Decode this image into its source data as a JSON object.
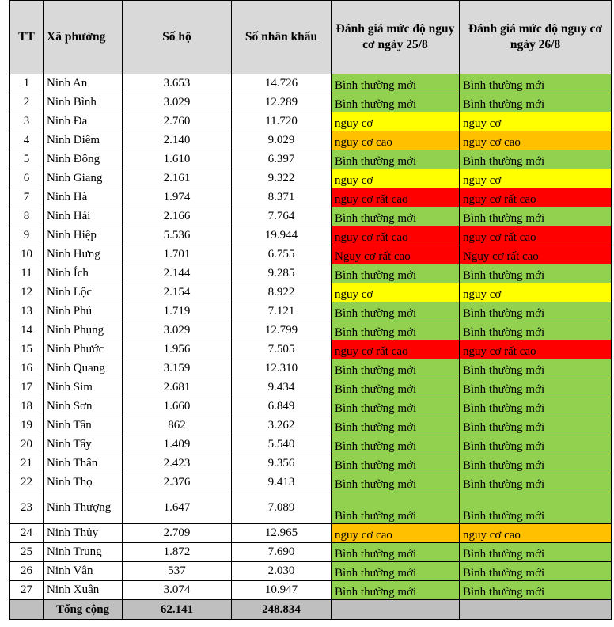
{
  "headers": {
    "tt": "TT",
    "ward": "Xã phường",
    "households": "Số hộ",
    "population": "Số nhân khẩu",
    "risk_25": "Đánh giá mức độ nguy cơ ngày 25/8",
    "risk_26": "Đánh giá mức độ nguy cơ ngày 26/8"
  },
  "level_colors": {
    "green": "#92d050",
    "yellow": "#ffff00",
    "orange": "#ffc000",
    "red": "#ff0000"
  },
  "rows": [
    {
      "tt": "1",
      "name": "Ninh An",
      "households": "3.653",
      "population": "14.726",
      "r25": "Bình thường mới",
      "r26": "Bình thường mới",
      "c25": "green",
      "c26": "green"
    },
    {
      "tt": "2",
      "name": "Ninh Bình",
      "households": "3.029",
      "population": "12.289",
      "r25": "Bình thường mới",
      "r26": "Bình thường mới",
      "c25": "green",
      "c26": "green"
    },
    {
      "tt": "3",
      "name": "Ninh Đa",
      "households": "2.760",
      "population": "11.720",
      "r25": "nguy cơ",
      "r26": "nguy cơ",
      "c25": "yellow",
      "c26": "yellow"
    },
    {
      "tt": "4",
      "name": "Ninh Diêm",
      "households": "2.140",
      "population": "9.029",
      "r25": "nguy cơ cao",
      "r26": "nguy cơ cao",
      "c25": "orange",
      "c26": "orange"
    },
    {
      "tt": "5",
      "name": "Ninh Đông",
      "households": "1.610",
      "population": "6.397",
      "r25": "Bình thường mới",
      "r26": "Bình thường mới",
      "c25": "green",
      "c26": "green"
    },
    {
      "tt": "6",
      "name": "Ninh Giang",
      "households": "2.161",
      "population": "9.322",
      "r25": "nguy cơ",
      "r26": "nguy cơ",
      "c25": "yellow",
      "c26": "yellow"
    },
    {
      "tt": "7",
      "name": "Ninh Hà",
      "households": "1.974",
      "population": "8.371",
      "r25": "nguy cơ rất cao",
      "r26": "nguy cơ rất cao",
      "c25": "red",
      "c26": "red"
    },
    {
      "tt": "8",
      "name": "Ninh Hải",
      "households": "2.166",
      "population": "7.764",
      "r25": "Bình thường mới",
      "r26": "Bình thường mới",
      "c25": "green",
      "c26": "green"
    },
    {
      "tt": "9",
      "name": "Ninh Hiệp",
      "households": "5.536",
      "population": "19.944",
      "r25": "nguy cơ rất cao",
      "r26": "nguy cơ rất cao",
      "c25": "red",
      "c26": "red"
    },
    {
      "tt": "10",
      "name": "Ninh Hưng",
      "households": "1.701",
      "population": "6.755",
      "r25": "Nguy cơ rất cao",
      "r26": "Nguy cơ rất cao",
      "c25": "red",
      "c26": "red"
    },
    {
      "tt": "11",
      "name": "Ninh Ích",
      "households": "2.144",
      "population": "9.285",
      "r25": "Bình thường mới",
      "r26": "Bình thường mới",
      "c25": "green",
      "c26": "green"
    },
    {
      "tt": "12",
      "name": "Ninh Lộc",
      "households": "2.154",
      "population": "8.922",
      "r25": "nguy cơ",
      "r26": "nguy cơ",
      "c25": "yellow",
      "c26": "yellow"
    },
    {
      "tt": "13",
      "name": "Ninh Phú",
      "households": "1.719",
      "population": "7.121",
      "r25": "Bình thường mới",
      "r26": "Bình thường mới",
      "c25": "green",
      "c26": "green"
    },
    {
      "tt": "14",
      "name": "Ninh Phụng",
      "households": "3.029",
      "population": "12.799",
      "r25": "Bình thường mới",
      "r26": "Bình thường mới",
      "c25": "green",
      "c26": "green"
    },
    {
      "tt": "15",
      "name": "Ninh Phước",
      "households": "1.956",
      "population": "7.505",
      "r25": "nguy cơ rất cao",
      "r26": "nguy cơ rất cao",
      "c25": "red",
      "c26": "red"
    },
    {
      "tt": "16",
      "name": "Ninh Quang",
      "households": "3.159",
      "population": "12.310",
      "r25": "Bình thường mới",
      "r26": "Bình thường mới",
      "c25": "green",
      "c26": "green"
    },
    {
      "tt": "17",
      "name": "Ninh Sim",
      "households": "2.681",
      "population": "9.434",
      "r25": "Bình thường mới",
      "r26": "Bình thường mới",
      "c25": "green",
      "c26": "green"
    },
    {
      "tt": "18",
      "name": "Ninh Sơn",
      "households": "1.660",
      "population": "6.849",
      "r25": "Bình thường mới",
      "r26": "Bình thường mới",
      "c25": "green",
      "c26": "green"
    },
    {
      "tt": "19",
      "name": "Ninh Tân",
      "households": "862",
      "population": "3.262",
      "r25": "Bình thường mới",
      "r26": "Bình thường mới",
      "c25": "green",
      "c26": "green"
    },
    {
      "tt": "20",
      "name": "Ninh Tây",
      "households": "1.409",
      "population": "5.540",
      "r25": "Bình thường mới",
      "r26": "Bình thường mới",
      "c25": "green",
      "c26": "green"
    },
    {
      "tt": "21",
      "name": "Ninh Thân",
      "households": "2.423",
      "population": "9.356",
      "r25": "Bình thường mới",
      "r26": "Bình thường mới",
      "c25": "green",
      "c26": "green"
    },
    {
      "tt": "22",
      "name": "Ninh Thọ",
      "households": "2.376",
      "population": "9.413",
      "r25": "Bình thường mới",
      "r26": "Bình thường mới",
      "c25": "green",
      "c26": "green"
    },
    {
      "tt": "23",
      "name": "Ninh Thượng",
      "households": "1.647",
      "population": "7.089",
      "r25": "Bình thường mới",
      "r26": "Bình thường mới",
      "c25": "green",
      "c26": "green"
    },
    {
      "tt": "24",
      "name": "Ninh Thủy",
      "households": "2.709",
      "population": "12.965",
      "r25": "nguy cơ cao",
      "r26": "nguy cơ cao",
      "c25": "orange",
      "c26": "orange"
    },
    {
      "tt": "25",
      "name": "Ninh Trung",
      "households": "1.872",
      "population": "7.690",
      "r25": "Bình thường mới",
      "r26": "Bình thường mới",
      "c25": "green",
      "c26": "green"
    },
    {
      "tt": "26",
      "name": "Ninh Vân",
      "households": "537",
      "population": "2.030",
      "r25": "Bình thường mới",
      "r26": "Bình thường mới",
      "c25": "green",
      "c26": "green"
    },
    {
      "tt": "27",
      "name": "Ninh Xuân",
      "households": "3.074",
      "population": "10.947",
      "r25": "Bình thường mới",
      "r26": "Bình thường mới",
      "c25": "green",
      "c26": "green"
    }
  ],
  "total": {
    "label": "Tổng cộng",
    "households": "62.141",
    "population": "248.834"
  }
}
